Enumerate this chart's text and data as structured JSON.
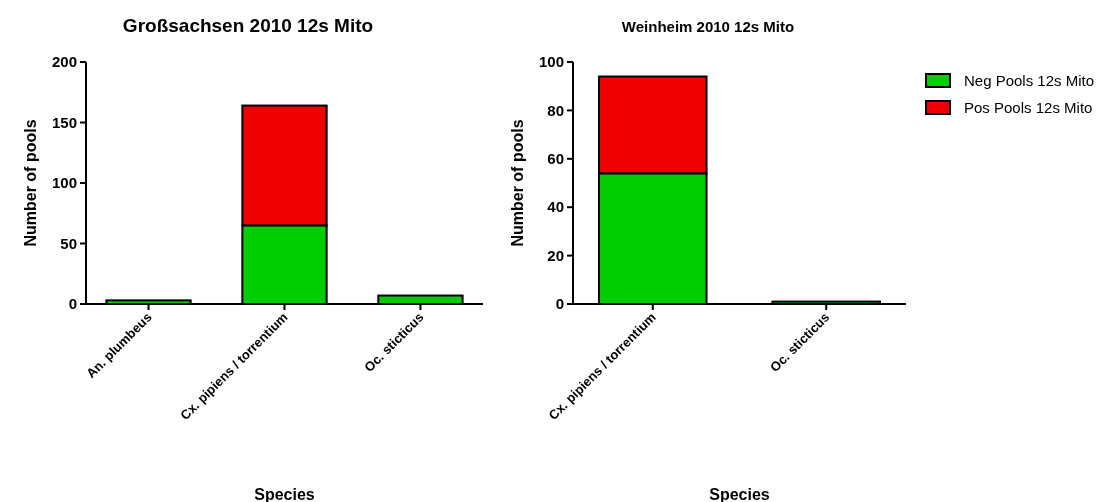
{
  "chart_data": [
    {
      "type": "bar",
      "title": "Großsachsen 2010 12s Mito",
      "xlabel": "Species",
      "ylabel": "Number of pools",
      "categories": [
        "An. plumbeus",
        "Cx. pipiens / torrentium",
        "Oc. sticticus"
      ],
      "stacked": true,
      "ylim": [
        0,
        200
      ],
      "yticks": [
        0,
        50,
        100,
        150,
        200
      ],
      "series": [
        {
          "color": "#00cc00",
          "values": [
            3,
            65,
            7
          ]
        },
        {
          "color": "#ee0000",
          "values": [
            null,
            99,
            null
          ]
        }
      ]
    },
    {
      "type": "bar",
      "title": "Weinheim 2010 12s Mito",
      "xlabel": "Species",
      "ylabel": "Number of pools",
      "categories": [
        "Cx. pipiens / torrentium",
        "Oc. sticticus"
      ],
      "stacked": true,
      "ylim": [
        0,
        100
      ],
      "yticks": [
        0,
        20,
        40,
        60,
        80,
        100
      ],
      "legend": "right",
      "series": [
        {
          "name": "Neg Pools 12s Mito",
          "color": "#00cc00",
          "values": [
            54,
            1
          ]
        },
        {
          "name": "Pos Pools 12s Mito",
          "color": "#ee0000",
          "values": [
            40,
            null
          ]
        }
      ]
    }
  ]
}
